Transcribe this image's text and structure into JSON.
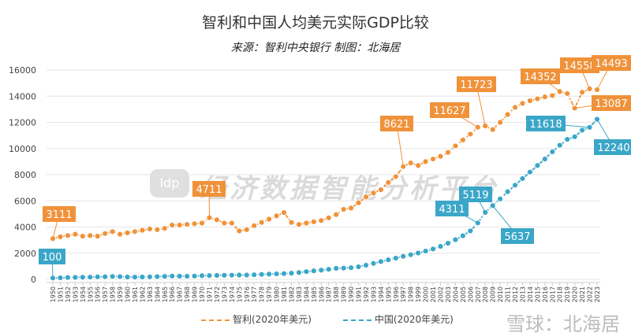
{
  "chart_data": {
    "type": "line",
    "title": "智利和中国人均美元实际GDP比较",
    "subtitle": "来源：智利中央银行 制图：北海居",
    "xlabel": "",
    "ylabel": "",
    "ylim": [
      0,
      16000
    ],
    "yticks": [
      0,
      2000,
      4000,
      6000,
      8000,
      10000,
      12000,
      14000,
      16000
    ],
    "grid": true,
    "legend_position": "bottom",
    "x": [
      1950,
      1951,
      1952,
      1953,
      1954,
      1955,
      1956,
      1957,
      1958,
      1959,
      1960,
      1961,
      1962,
      1963,
      1964,
      1965,
      1966,
      1967,
      1968,
      1969,
      1970,
      1971,
      1972,
      1973,
      1974,
      1975,
      1976,
      1977,
      1978,
      1979,
      1980,
      1981,
      1982,
      1983,
      1984,
      1985,
      1986,
      1987,
      1988,
      1989,
      1990,
      1991,
      1992,
      1993,
      1994,
      1995,
      1996,
      1997,
      1998,
      1999,
      2000,
      2001,
      2002,
      2003,
      2004,
      2005,
      2006,
      2007,
      2008,
      2009,
      2010,
      2011,
      2012,
      2013,
      2014,
      2015,
      2016,
      2017,
      2018,
      2019,
      2020,
      2021,
      2022,
      2023
    ],
    "series": [
      {
        "name": "智利(2020年美元)",
        "color": "#f0923a",
        "values": [
          3111,
          3250,
          3350,
          3450,
          3300,
          3350,
          3300,
          3500,
          3650,
          3450,
          3550,
          3650,
          3750,
          3850,
          3800,
          3900,
          4150,
          4150,
          4200,
          4250,
          4300,
          4711,
          4550,
          4300,
          4300,
          3700,
          3800,
          4100,
          4350,
          4600,
          4850,
          5100,
          4350,
          4200,
          4300,
          4400,
          4500,
          4700,
          4950,
          5350,
          5450,
          5850,
          6300,
          6600,
          6850,
          7400,
          7850,
          8621,
          8900,
          8700,
          9000,
          9200,
          9400,
          9700,
          10200,
          10650,
          11100,
          11627,
          11723,
          11450,
          12000,
          12600,
          13150,
          13450,
          13650,
          13800,
          13950,
          14050,
          14352,
          14200,
          13087,
          14300,
          14558,
          14493
        ],
        "labels": {
          "1950": "3111",
          "1971": "4711",
          "1997": "8621",
          "2007": "11627",
          "2008": "11723",
          "2018": "14352",
          "2020": "13087",
          "2022": "14558",
          "2023": "14493"
        }
      },
      {
        "name": "中国(2020年美元)",
        "color": "#3aa6c8",
        "values": [
          100,
          120,
          140,
          150,
          160,
          170,
          190,
          200,
          220,
          210,
          180,
          170,
          180,
          190,
          210,
          230,
          250,
          240,
          235,
          250,
          280,
          290,
          300,
          310,
          320,
          330,
          330,
          350,
          380,
          400,
          420,
          440,
          470,
          520,
          590,
          650,
          700,
          770,
          840,
          860,
          890,
          960,
          1080,
          1220,
          1360,
          1490,
          1620,
          1760,
          1880,
          2010,
          2160,
          2320,
          2520,
          2760,
          3030,
          3330,
          3700,
          4311,
          5119,
          5637,
          6150,
          6700,
          7200,
          7700,
          8200,
          8700,
          9200,
          9750,
          10250,
          10700,
          10900,
          11400,
          11618,
          12240
        ],
        "labels": {
          "1950": "100",
          "2007": "4311",
          "2008": "5119",
          "2009": "5637",
          "2022": "11618",
          "2023": "12240"
        }
      }
    ]
  },
  "watermark": "经济数据智能分析平台",
  "watermark_logo": "ldp",
  "source_mark": "雪球：北海居"
}
